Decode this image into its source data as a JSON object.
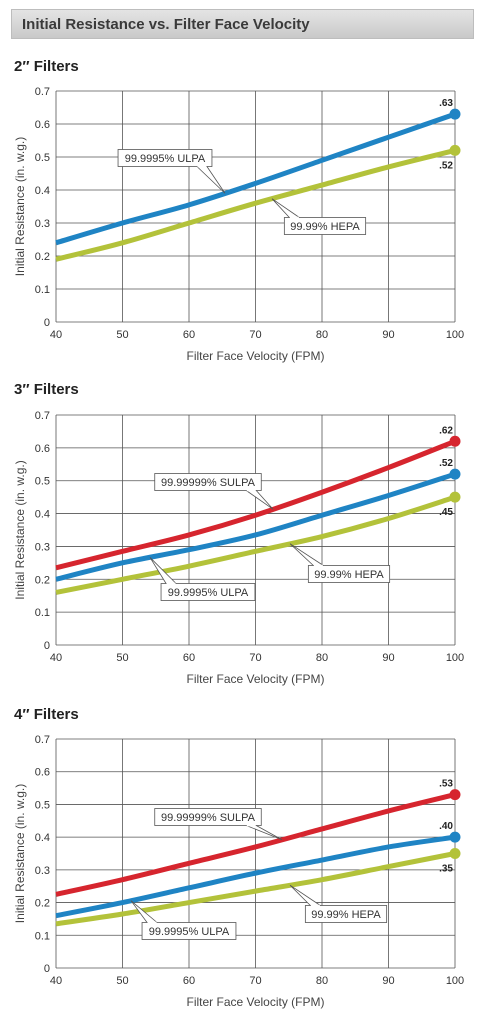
{
  "page_title": "Initial Resistance vs. Filter Face Velocity",
  "colors": {
    "ULPA": "#1f84c4",
    "HEPA": "#b3c23a",
    "SULPA": "#d6252e",
    "grid": "#555555"
  },
  "chart_data": [
    {
      "type": "line",
      "title": "2″ Filters",
      "xlabel": "Filter Face Velocity (FPM)",
      "ylabel": "Initial Resistance (in. w.g.)",
      "xlim": [
        40,
        100
      ],
      "ylim": [
        0,
        0.7
      ],
      "xticks": [
        "40",
        "50",
        "60",
        "70",
        "80",
        "90",
        "100"
      ],
      "yticks": [
        "0",
        "0.1",
        "0.2",
        "0.3",
        "0.4",
        "0.5",
        "0.6",
        "0.7"
      ],
      "grid": true,
      "series": [
        {
          "key": "ULPA",
          "name": "99.9995% ULPA",
          "x": [
            40,
            50,
            60,
            70,
            80,
            90,
            100
          ],
          "values": [
            0.24,
            0.3,
            0.355,
            0.42,
            0.49,
            0.56,
            0.63
          ],
          "end_label": ".63"
        },
        {
          "key": "HEPA",
          "name": "99.99% HEPA",
          "x": [
            40,
            50,
            60,
            70,
            80,
            90,
            100
          ],
          "values": [
            0.19,
            0.24,
            0.3,
            0.36,
            0.415,
            0.47,
            0.52
          ],
          "end_label": ".52"
        }
      ]
    },
    {
      "type": "line",
      "title": "3″ Filters",
      "xlabel": "Filter Face Velocity (FPM)",
      "ylabel": "Initial Resistance (in. w.g.)",
      "xlim": [
        40,
        100
      ],
      "ylim": [
        0,
        0.7
      ],
      "xticks": [
        "40",
        "50",
        "60",
        "70",
        "80",
        "90",
        "100"
      ],
      "yticks": [
        "0",
        "0.1",
        "0.2",
        "0.3",
        "0.4",
        "0.5",
        "0.6",
        "0.7"
      ],
      "grid": true,
      "series": [
        {
          "key": "SULPA",
          "name": "99.99999% SULPA",
          "x": [
            40,
            50,
            60,
            70,
            80,
            90,
            100
          ],
          "values": [
            0.235,
            0.285,
            0.335,
            0.395,
            0.465,
            0.54,
            0.62
          ],
          "end_label": ".62"
        },
        {
          "key": "ULPA",
          "name": "99.9995% ULPA",
          "x": [
            40,
            50,
            60,
            70,
            80,
            90,
            100
          ],
          "values": [
            0.2,
            0.25,
            0.29,
            0.335,
            0.395,
            0.455,
            0.52
          ],
          "end_label": ".52"
        },
        {
          "key": "HEPA",
          "name": "99.99% HEPA",
          "x": [
            40,
            50,
            60,
            70,
            80,
            90,
            100
          ],
          "values": [
            0.16,
            0.2,
            0.24,
            0.285,
            0.33,
            0.385,
            0.45
          ],
          "end_label": ".45"
        }
      ]
    },
    {
      "type": "line",
      "title": "4″ Filters",
      "xlabel": "Filter Face Velocity (FPM)",
      "ylabel": "Initial Resistance (in. w.g.)",
      "xlim": [
        40,
        100
      ],
      "ylim": [
        0,
        0.7
      ],
      "xticks": [
        "40",
        "50",
        "60",
        "70",
        "80",
        "90",
        "100"
      ],
      "yticks": [
        "0",
        "0.1",
        "0.2",
        "0.3",
        "0.4",
        "0.5",
        "0.6",
        "0.7"
      ],
      "grid": true,
      "series": [
        {
          "key": "SULPA",
          "name": "99.99999% SULPA",
          "x": [
            40,
            50,
            60,
            70,
            80,
            90,
            100
          ],
          "values": [
            0.225,
            0.27,
            0.32,
            0.37,
            0.425,
            0.48,
            0.53
          ],
          "end_label": ".53"
        },
        {
          "key": "ULPA",
          "name": "99.9995% ULPA",
          "x": [
            40,
            50,
            60,
            70,
            80,
            90,
            100
          ],
          "values": [
            0.16,
            0.2,
            0.245,
            0.29,
            0.33,
            0.37,
            0.4
          ],
          "end_label": ".40"
        },
        {
          "key": "HEPA",
          "name": "99.99% HEPA",
          "x": [
            40,
            50,
            60,
            70,
            80,
            90,
            100
          ],
          "values": [
            0.135,
            0.165,
            0.2,
            0.235,
            0.27,
            0.31,
            0.35
          ],
          "end_label": ".35"
        }
      ]
    }
  ]
}
